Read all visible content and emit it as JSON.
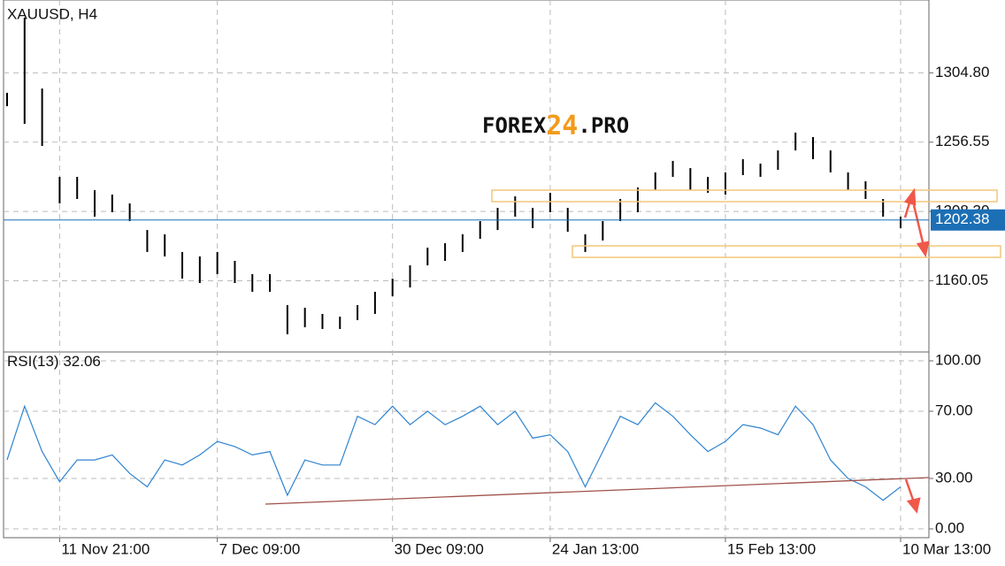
{
  "chart_data": {
    "type": "range",
    "title": "XAUUSD, H4",
    "watermark": [
      "FOREX",
      "24",
      ".PRO"
    ],
    "categories": [
      null,
      null,
      null,
      "11 Nov 21:00",
      null,
      null,
      null,
      null,
      null,
      null,
      null,
      null,
      "7 Dec 09:00",
      null,
      null,
      null,
      null,
      null,
      null,
      null,
      null,
      null,
      "30 Dec 09:00",
      null,
      null,
      null,
      null,
      null,
      null,
      null,
      null,
      "24 Jan 13:00",
      null,
      null,
      null,
      null,
      null,
      null,
      null,
      null,
      null,
      "15 Feb 13:00",
      null,
      null,
      null,
      null,
      null,
      null,
      null,
      null,
      null,
      "10 Mar 13:00"
    ],
    "high": [
      1290.9,
      1343.2,
      1293.9,
      1232.4,
      1232.4,
      1223.1,
      1220.1,
      1213.9,
      1195.4,
      1192.4,
      1180.1,
      1177.0,
      1180.1,
      1173.9,
      1164.7,
      1164.7,
      1143.1,
      1141.3,
      1137.0,
      1135.1,
      1143.1,
      1152.4,
      1161.6,
      1170.8,
      1183.1,
      1186.2,
      1192.4,
      1201.6,
      1210.8,
      1218.8,
      1210.8,
      1221.3,
      1210.8,
      1192.4,
      1201.6,
      1217.0,
      1225.0,
      1235.5,
      1243.5,
      1238.5,
      1232.4,
      1235.5,
      1244.7,
      1241.6,
      1250.8,
      1263.2,
      1260.1,
      1250.8,
      1235.5,
      1229.3,
      1217.0,
      1204.7
    ],
    "low": [
      1281.6,
      1269.3,
      1253.9,
      1213.9,
      1217.0,
      1204.7,
      1207.8,
      1201.6,
      1180.1,
      1177.0,
      1161.6,
      1158.5,
      1164.7,
      1158.5,
      1152.4,
      1152.4,
      1122.8,
      1127.7,
      1126.5,
      1126.5,
      1132.7,
      1137.0,
      1149.3,
      1155.4,
      1170.8,
      1173.9,
      1180.1,
      1189.3,
      1195.4,
      1204.7,
      1196.7,
      1207.8,
      1194.2,
      1180.1,
      1188.1,
      1201.6,
      1207.8,
      1223.1,
      1232.4,
      1223.1,
      1221.3,
      1220.1,
      1233.6,
      1232.4,
      1237.3,
      1250.8,
      1244.7,
      1235.5,
      1223.1,
      1217.0,
      1204.7,
      1196.7
    ],
    "color": "#000000",
    "last_price": 1202.38,
    "last_price_color": "#1c6fb5",
    "ylim": [
      1110.5,
      1355.5
    ],
    "yticks": [
      {
        "value": 1160.05,
        "label": "1160.05"
      },
      {
        "value": 1208.3,
        "label": "1208.30"
      },
      {
        "value": 1256.55,
        "label": "1256.55"
      },
      {
        "value": 1304.8,
        "label": "1304.80"
      }
    ],
    "grid": true,
    "indicator": {
      "type": "line",
      "name": "RSI(13)",
      "last_value": 32.06,
      "color": "#2f84d0",
      "values": [
        41,
        73,
        46,
        28,
        41,
        41,
        44,
        33,
        25,
        41,
        38,
        44,
        52,
        49,
        44,
        46,
        20,
        41,
        38,
        38,
        67,
        62,
        73,
        62,
        70,
        62,
        67,
        73,
        62,
        70,
        54,
        56,
        46,
        25,
        46,
        67,
        62,
        75,
        67,
        56,
        46,
        52,
        62,
        60,
        56,
        73,
        62,
        41,
        30,
        25,
        17,
        25
      ],
      "ylim": [
        0,
        100
      ],
      "yticks": [
        {
          "value": 0,
          "label": "0.00"
        },
        {
          "value": 30,
          "label": "30.00"
        },
        {
          "value": 70,
          "label": "70.00"
        },
        {
          "value": 100,
          "label": "100.00"
        }
      ]
    }
  }
}
